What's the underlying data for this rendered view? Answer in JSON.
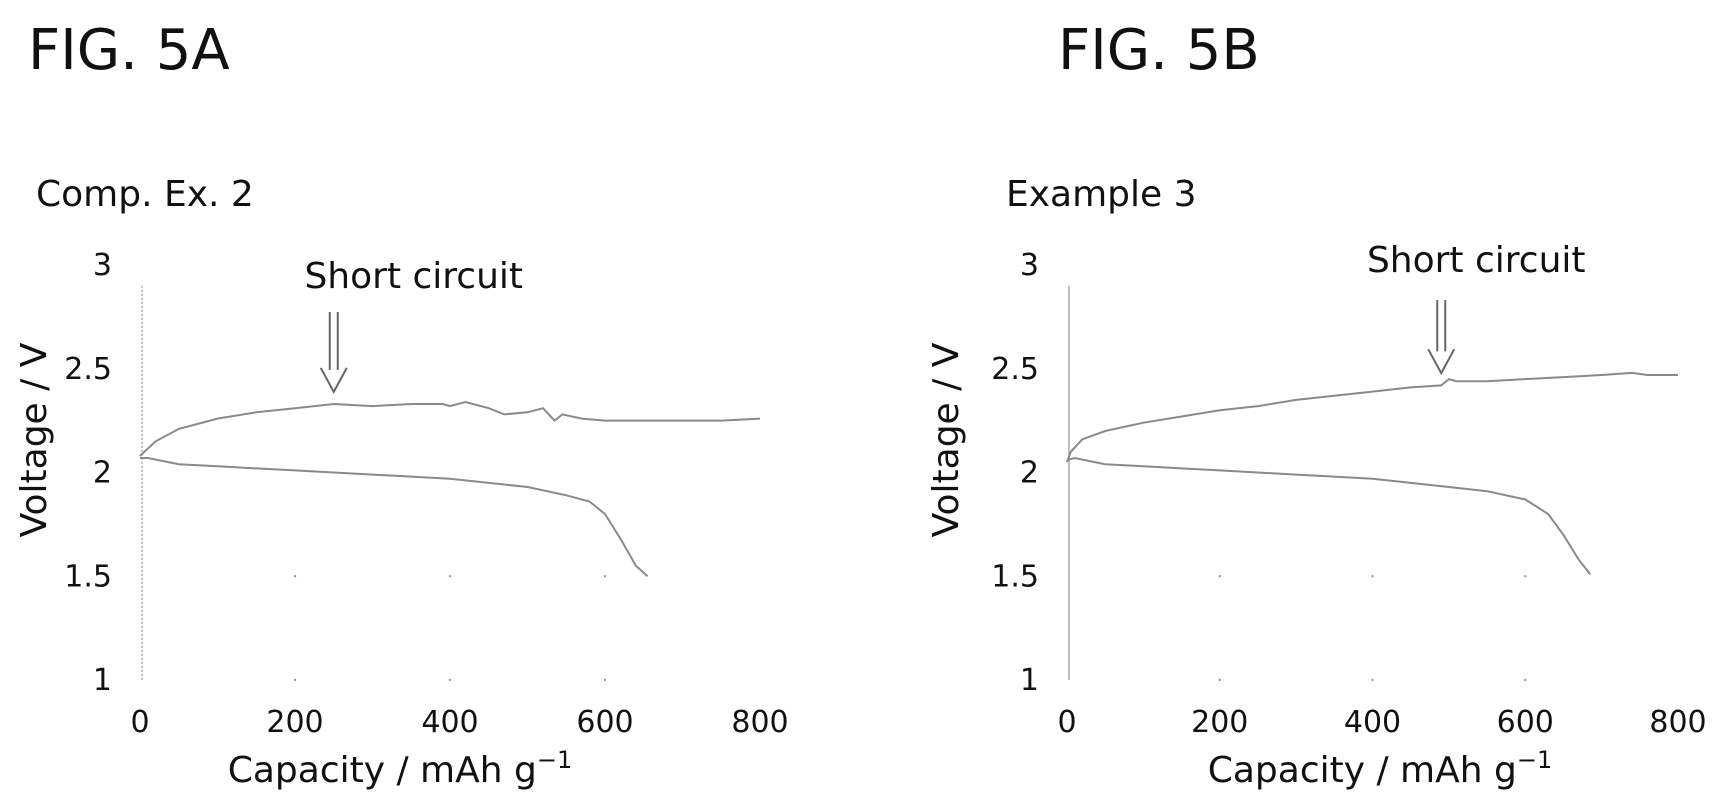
{
  "figures": [
    {
      "fig_label": "FIG. 5A"
    },
    {
      "fig_label": "FIG. 5B"
    }
  ],
  "chart_data": [
    {
      "type": "line",
      "title": "Comp. Ex. 2",
      "xlabel": "Capacity / mAh g",
      "xlabel_superscript": "−1",
      "ylabel": "Voltage / V",
      "xlim": [
        0,
        800
      ],
      "ylim": [
        1,
        3
      ],
      "xticks": [
        "0",
        "200",
        "400",
        "600",
        "800"
      ],
      "yticks": [
        "1",
        "1.5",
        "2",
        "2.5",
        "3"
      ],
      "grid": false,
      "line_color": "#8a8a8a",
      "annotation": {
        "text": "Short circuit",
        "x": 250,
        "y": 2.35
      },
      "series": [
        {
          "x": [
            0,
            20,
            50,
            100,
            150,
            200,
            250,
            300,
            350,
            390,
            400,
            420,
            450,
            470,
            500,
            520,
            535,
            545,
            570,
            600,
            650,
            700,
            750,
            800
          ],
          "y": [
            2.08,
            2.15,
            2.21,
            2.26,
            2.29,
            2.31,
            2.33,
            2.32,
            2.33,
            2.33,
            2.32,
            2.34,
            2.31,
            2.28,
            2.29,
            2.31,
            2.25,
            2.28,
            2.26,
            2.25,
            2.25,
            2.25,
            2.25,
            2.26
          ]
        },
        {
          "x": [
            0,
            10,
            50,
            100,
            150,
            200,
            250,
            300,
            350,
            400,
            450,
            500,
            550,
            580,
            600,
            620,
            640,
            655
          ],
          "y": [
            2.07,
            2.07,
            2.04,
            2.03,
            2.02,
            2.01,
            2.0,
            1.99,
            1.98,
            1.97,
            1.95,
            1.93,
            1.89,
            1.86,
            1.8,
            1.68,
            1.55,
            1.5
          ]
        }
      ]
    },
    {
      "type": "line",
      "title": "Example 3",
      "xlabel": "Capacity / mAh g",
      "xlabel_superscript": "−1",
      "ylabel": "Voltage / V",
      "xlim": [
        0,
        800
      ],
      "ylim": [
        1,
        3
      ],
      "xticks": [
        "0",
        "200",
        "400",
        "600",
        "800"
      ],
      "yticks": [
        "1",
        "1.5",
        "2",
        "2.5",
        "3"
      ],
      "grid": false,
      "line_color": "#8a8a8a",
      "annotation": {
        "text": "Short circuit",
        "x": 490,
        "y": 2.44
      },
      "series": [
        {
          "x": [
            0,
            5,
            20,
            50,
            100,
            150,
            200,
            250,
            300,
            350,
            400,
            450,
            490,
            500,
            510,
            550,
            600,
            650,
            700,
            740,
            760,
            800
          ],
          "y": [
            2.05,
            2.1,
            2.16,
            2.2,
            2.24,
            2.27,
            2.3,
            2.32,
            2.35,
            2.37,
            2.39,
            2.41,
            2.42,
            2.45,
            2.44,
            2.44,
            2.45,
            2.46,
            2.47,
            2.48,
            2.47,
            2.47
          ]
        },
        {
          "x": [
            0,
            10,
            50,
            100,
            150,
            200,
            250,
            300,
            350,
            400,
            450,
            500,
            550,
            600,
            630,
            650,
            670,
            685
          ],
          "y": [
            2.06,
            2.07,
            2.04,
            2.03,
            2.02,
            2.01,
            2.0,
            1.99,
            1.98,
            1.97,
            1.95,
            1.93,
            1.91,
            1.87,
            1.8,
            1.7,
            1.58,
            1.51
          ]
        }
      ]
    }
  ]
}
